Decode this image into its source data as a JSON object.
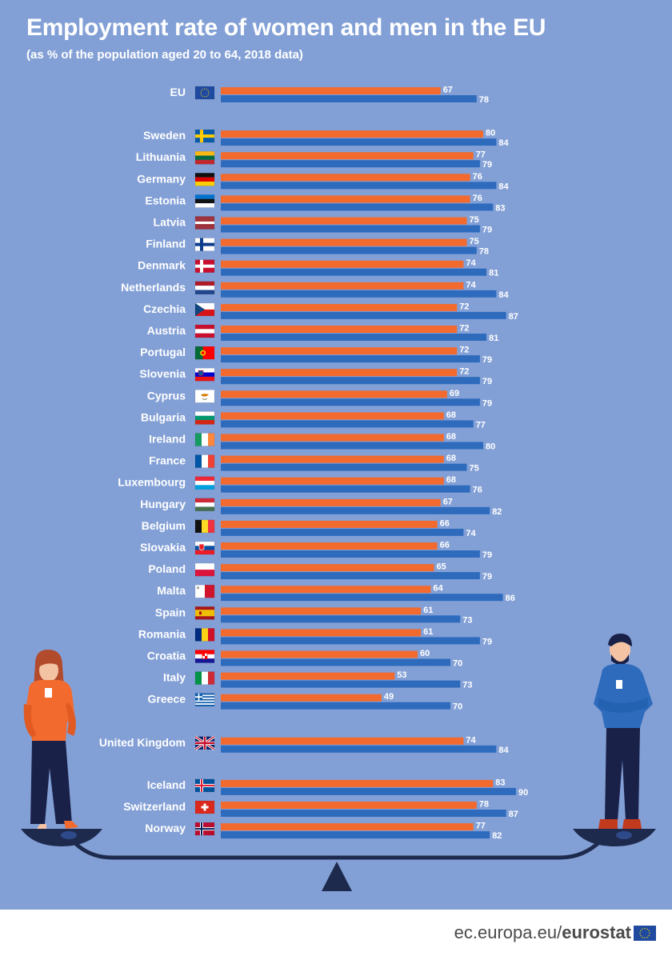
{
  "title": "Employment rate of women and men in the EU",
  "subtitle": "(as % of the population aged 20 to 64, 2018 data)",
  "footer": {
    "site": "ec.europa.eu/",
    "brand": "eurostat"
  },
  "colors": {
    "background": "#83a0d6",
    "women": "#f26a2e",
    "men": "#2e6bbd"
  },
  "chart_data": {
    "type": "bar",
    "orientation": "horizontal",
    "series": [
      {
        "values": [
          67,
          80,
          77,
          76,
          76,
          75,
          75,
          74,
          74,
          72,
          72,
          72,
          72,
          69,
          68,
          68,
          68,
          68,
          67,
          66,
          66,
          65,
          64,
          61,
          61,
          60,
          53,
          49,
          74,
          83,
          78,
          77
        ]
      },
      {
        "values": [
          78,
          84,
          79,
          84,
          83,
          79,
          78,
          81,
          84,
          87,
          81,
          79,
          79,
          79,
          77,
          80,
          75,
          76,
          82,
          74,
          79,
          79,
          86,
          73,
          79,
          70,
          73,
          70,
          84,
          90,
          87,
          82
        ]
      }
    ],
    "categories": [
      {
        "name": "EU",
        "flag": "eu",
        "group": 0
      },
      {
        "name": "Sweden",
        "flag": "se",
        "group": 1
      },
      {
        "name": "Lithuania",
        "flag": "lt",
        "group": 1
      },
      {
        "name": "Germany",
        "flag": "de",
        "group": 1
      },
      {
        "name": "Estonia",
        "flag": "ee",
        "group": 1
      },
      {
        "name": "Latvia",
        "flag": "lv",
        "group": 1
      },
      {
        "name": "Finland",
        "flag": "fi",
        "group": 1
      },
      {
        "name": "Denmark",
        "flag": "dk",
        "group": 1
      },
      {
        "name": "Netherlands",
        "flag": "nl",
        "group": 1
      },
      {
        "name": "Czechia",
        "flag": "cz",
        "group": 1
      },
      {
        "name": "Austria",
        "flag": "at",
        "group": 1
      },
      {
        "name": "Portugal",
        "flag": "pt",
        "group": 1
      },
      {
        "name": "Slovenia",
        "flag": "si",
        "group": 1
      },
      {
        "name": "Cyprus",
        "flag": "cy",
        "group": 1
      },
      {
        "name": "Bulgaria",
        "flag": "bg",
        "group": 1
      },
      {
        "name": "Ireland",
        "flag": "ie",
        "group": 1
      },
      {
        "name": "France",
        "flag": "fr",
        "group": 1
      },
      {
        "name": "Luxembourg",
        "flag": "lu",
        "group": 1
      },
      {
        "name": "Hungary",
        "flag": "hu",
        "group": 1
      },
      {
        "name": "Belgium",
        "flag": "be",
        "group": 1
      },
      {
        "name": "Slovakia",
        "flag": "sk",
        "group": 1
      },
      {
        "name": "Poland",
        "flag": "pl",
        "group": 1
      },
      {
        "name": "Malta",
        "flag": "mt",
        "group": 1
      },
      {
        "name": "Spain",
        "flag": "es",
        "group": 1
      },
      {
        "name": "Romania",
        "flag": "ro",
        "group": 1
      },
      {
        "name": "Croatia",
        "flag": "hr",
        "group": 1
      },
      {
        "name": "Italy",
        "flag": "it",
        "group": 1
      },
      {
        "name": "Greece",
        "flag": "gr",
        "group": 1
      },
      {
        "name": "United Kingdom",
        "flag": "gb",
        "group": 2
      },
      {
        "name": "Iceland",
        "flag": "is",
        "group": 3
      },
      {
        "name": "Switzerland",
        "flag": "ch",
        "group": 3
      },
      {
        "name": "Norway",
        "flag": "no",
        "group": 3
      }
    ],
    "xlim": [
      0,
      100
    ],
    "grid": false,
    "legend": "none"
  }
}
